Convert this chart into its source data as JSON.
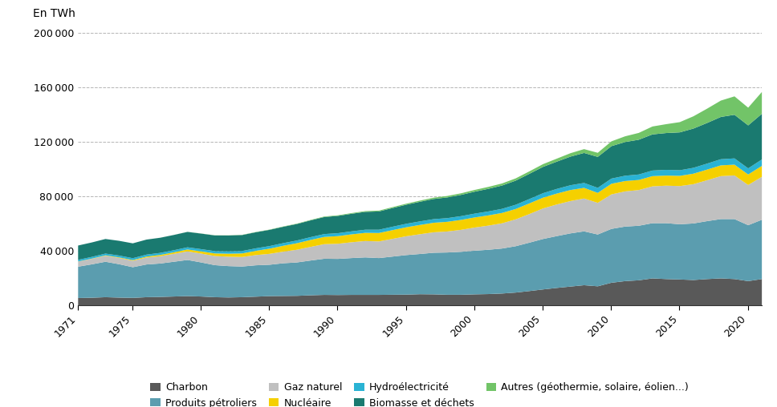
{
  "years": [
    1971,
    1972,
    1973,
    1974,
    1975,
    1976,
    1977,
    1978,
    1979,
    1980,
    1981,
    1982,
    1983,
    1984,
    1985,
    1986,
    1987,
    1988,
    1989,
    1990,
    1991,
    1992,
    1993,
    1994,
    1995,
    1996,
    1997,
    1998,
    1999,
    2000,
    2001,
    2002,
    2003,
    2004,
    2005,
    2006,
    2007,
    2008,
    2009,
    2010,
    2011,
    2012,
    2013,
    2014,
    2015,
    2016,
    2017,
    2018,
    2019,
    2020,
    2021
  ],
  "charbon": [
    5600,
    5800,
    6200,
    5900,
    5700,
    6200,
    6400,
    6700,
    7000,
    6700,
    6200,
    6000,
    6200,
    6600,
    7000,
    7100,
    7200,
    7600,
    7900,
    7800,
    7900,
    7900,
    7900,
    8000,
    8100,
    8400,
    8300,
    8000,
    8000,
    8300,
    8500,
    8900,
    9600,
    10700,
    11900,
    13000,
    14000,
    15000,
    14200,
    16800,
    18000,
    18600,
    20000,
    19500,
    19200,
    18800,
    19500,
    20000,
    19500,
    18000,
    19500
  ],
  "petrole": [
    23000,
    24500,
    26000,
    24500,
    22500,
    24000,
    24500,
    25500,
    26500,
    25000,
    23500,
    23000,
    22500,
    23000,
    23000,
    24000,
    24500,
    25500,
    26500,
    26500,
    27000,
    27500,
    27000,
    28000,
    29000,
    29500,
    30500,
    31000,
    31500,
    32000,
    32500,
    33000,
    34000,
    35500,
    37000,
    38000,
    39000,
    39500,
    38000,
    39500,
    40000,
    40000,
    40500,
    41000,
    40500,
    41500,
    42500,
    43500,
    44000,
    41000,
    43500
  ],
  "gaz": [
    3700,
    4000,
    4400,
    4600,
    4700,
    5100,
    5400,
    5800,
    6300,
    6500,
    6700,
    6900,
    7000,
    7500,
    8000,
    8500,
    9300,
    10000,
    10700,
    11100,
    11600,
    12000,
    12200,
    13000,
    13800,
    14500,
    15000,
    15400,
    16100,
    17000,
    17700,
    18500,
    19700,
    21000,
    22400,
    23200,
    23700,
    24100,
    23200,
    25300,
    25800,
    26200,
    27000,
    27500,
    28000,
    28800,
    30000,
    31500,
    32000,
    29500,
    31500
  ],
  "nucleaire": [
    100,
    200,
    300,
    400,
    500,
    700,
    900,
    1100,
    1400,
    1600,
    1900,
    2200,
    2600,
    3100,
    3800,
    4300,
    4800,
    5100,
    5300,
    5600,
    5800,
    6000,
    6200,
    6400,
    6600,
    6800,
    7000,
    7100,
    7300,
    7400,
    7500,
    7600,
    7600,
    7800,
    7900,
    8000,
    8100,
    7800,
    7300,
    7800,
    7600,
    7400,
    7500,
    7400,
    7500,
    7700,
    7800,
    7900,
    7900,
    7700,
    8000
  ],
  "hydro": [
    1200,
    1250,
    1300,
    1350,
    1400,
    1450,
    1500,
    1550,
    1600,
    1650,
    1700,
    1750,
    1800,
    1850,
    1900,
    1950,
    2000,
    2050,
    2100,
    2150,
    2200,
    2300,
    2400,
    2500,
    2550,
    2600,
    2650,
    2700,
    2750,
    2800,
    2900,
    3000,
    3100,
    3200,
    3300,
    3400,
    3500,
    3600,
    3700,
    3800,
    3900,
    4000,
    4100,
    4200,
    4100,
    4300,
    4400,
    4500,
    4600,
    4500,
    4700
  ],
  "biomasse": [
    10500,
    10600,
    10700,
    10800,
    10900,
    11000,
    11100,
    11200,
    11300,
    11400,
    11500,
    11600,
    11700,
    11800,
    11900,
    12000,
    12100,
    12300,
    12500,
    12700,
    12900,
    13100,
    13400,
    13700,
    14000,
    14400,
    14800,
    15200,
    15600,
    16100,
    16600,
    17100,
    17700,
    18500,
    19300,
    20000,
    21000,
    22000,
    22700,
    23800,
    24700,
    25500,
    26500,
    27000,
    27800,
    28800,
    29800,
    31000,
    32000,
    31500,
    33500
  ],
  "autres": [
    0,
    0,
    0,
    0,
    0,
    10,
    20,
    30,
    50,
    80,
    100,
    120,
    150,
    170,
    200,
    230,
    270,
    320,
    380,
    430,
    500,
    560,
    620,
    680,
    750,
    850,
    950,
    1050,
    1150,
    1280,
    1400,
    1520,
    1640,
    1800,
    2000,
    2200,
    2500,
    2800,
    3000,
    3500,
    4200,
    5000,
    5800,
    6500,
    7500,
    9000,
    10500,
    12000,
    13500,
    13000,
    16000
  ],
  "colors": {
    "charbon": "#595959",
    "petrole": "#5b9daf",
    "gaz": "#c0c0c0",
    "nucleaire": "#f5d000",
    "hydro": "#2ab3d4",
    "biomasse": "#1a7a70",
    "autres": "#72c468"
  },
  "labels": {
    "charbon": "Charbon",
    "petrole": "Produits pétroliers",
    "gaz": "Gaz naturel",
    "nucleaire": "Nucléaire",
    "hydro": "Hydroélectricité",
    "biomasse": "Biomasse et déchets",
    "autres": "Autres (géothermie, solaire, éolien...)"
  },
  "ylabel": "En TWh",
  "ylim": [
    0,
    200000
  ],
  "yticks": [
    0,
    40000,
    80000,
    120000,
    160000,
    200000
  ],
  "xticks": [
    1971,
    1975,
    1980,
    1985,
    1990,
    1995,
    2000,
    2005,
    2010,
    2015,
    2020
  ],
  "grid_color": "#b5b5b5",
  "background_color": "#ffffff"
}
